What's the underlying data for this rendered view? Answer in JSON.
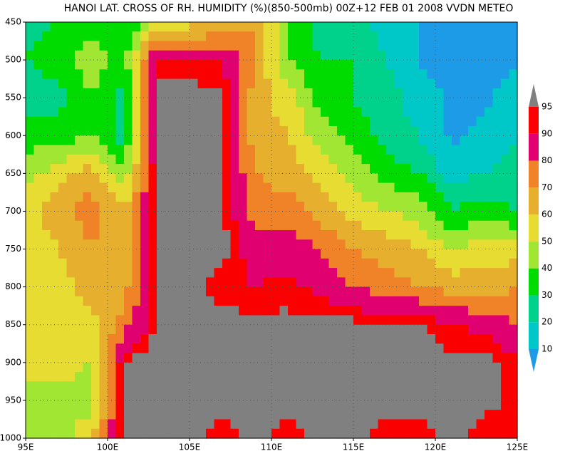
{
  "chart_data": {
    "type": "contour",
    "title": "HANOI LAT. CROSS OF RH. HUMIDITY (%)(850-500mb) 00Z+12 FEB 01 2008 VVDN METEO",
    "x": [
      95,
      97,
      99,
      101,
      103,
      105,
      107,
      109,
      111,
      113,
      115,
      117,
      119,
      121,
      123,
      125
    ],
    "y": [
      450,
      500,
      550,
      600,
      650,
      700,
      750,
      800,
      850,
      900,
      950,
      1000
    ],
    "z": [
      [
        25,
        30,
        35,
        30,
        50,
        55,
        60,
        70,
        40,
        25,
        25,
        15,
        10,
        5,
        5,
        5
      ],
      [
        30,
        35,
        45,
        35,
        92,
        92,
        90,
        70,
        40,
        30,
        30,
        20,
        10,
        5,
        5,
        10
      ],
      [
        25,
        25,
        40,
        25,
        97,
        97,
        97,
        65,
        55,
        35,
        30,
        25,
        15,
        8,
        8,
        15
      ],
      [
        35,
        35,
        40,
        25,
        97,
        97,
        97,
        65,
        60,
        45,
        35,
        25,
        20,
        8,
        12,
        20
      ],
      [
        45,
        55,
        65,
        45,
        97,
        97,
        97,
        70,
        65,
        55,
        45,
        35,
        30,
        15,
        20,
        25
      ],
      [
        55,
        65,
        75,
        60,
        97,
        97,
        97,
        75,
        75,
        65,
        55,
        50,
        45,
        30,
        35,
        30
      ],
      [
        55,
        60,
        70,
        60,
        97,
        97,
        97,
        85,
        85,
        80,
        70,
        65,
        60,
        50,
        55,
        55
      ],
      [
        55,
        55,
        65,
        65,
        97,
        97,
        93,
        90,
        92,
        88,
        80,
        75,
        70,
        65,
        65,
        70
      ],
      [
        55,
        55,
        55,
        75,
        97,
        97,
        97,
        97,
        97,
        97,
        97,
        97,
        97,
        90,
        88,
        80
      ],
      [
        55,
        55,
        50,
        97,
        97,
        97,
        97,
        97,
        97,
        97,
        97,
        97,
        97,
        97,
        97,
        92
      ],
      [
        45,
        45,
        45,
        97,
        97,
        97,
        97,
        97,
        97,
        97,
        97,
        97,
        97,
        97,
        97,
        93
      ],
      [
        40,
        45,
        60,
        97,
        97,
        97,
        92,
        97,
        92,
        97,
        97,
        92,
        92,
        97,
        92,
        93
      ]
    ],
    "xlim": [
      95,
      125
    ],
    "ylim": [
      1000,
      450
    ],
    "xticks": [
      {
        "value": 95,
        "label": "95E"
      },
      {
        "value": 100,
        "label": "100E"
      },
      {
        "value": 105,
        "label": "105E"
      },
      {
        "value": 110,
        "label": "110E"
      },
      {
        "value": 115,
        "label": "115E"
      },
      {
        "value": 120,
        "label": "120E"
      },
      {
        "value": 125,
        "label": "125E"
      }
    ],
    "yticks": [
      450,
      500,
      550,
      600,
      650,
      700,
      750,
      800,
      850,
      900,
      950,
      1000
    ],
    "grid": true,
    "levels": [
      10,
      20,
      30,
      40,
      50,
      60,
      70,
      80,
      90,
      95
    ],
    "level_colors": [
      "#1e9be6",
      "#00c8c8",
      "#00d28c",
      "#00dc00",
      "#a0e632",
      "#e6dc32",
      "#e6af2d",
      "#f08228",
      "#e00070",
      "#fa0000",
      "#808080"
    ]
  }
}
